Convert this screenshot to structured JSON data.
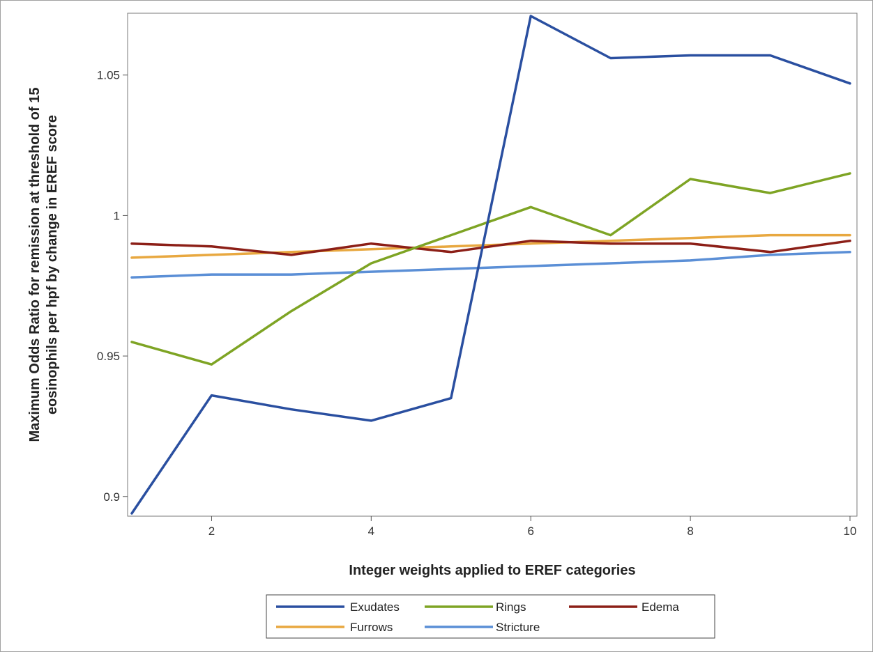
{
  "chart_data": {
    "type": "line",
    "title": "",
    "xlabel": "Integer weights applied to EREF categories",
    "ylabel_lines": [
      "Maximum Odds Ratio for remission at threshold of 15",
      "eosinophils per hpf by change in EREF score"
    ],
    "x": [
      1,
      2,
      3,
      4,
      5,
      6,
      7,
      8,
      9,
      10
    ],
    "xlim": [
      1,
      10
    ],
    "ylim": [
      0.893,
      1.072
    ],
    "xticks": [
      2,
      4,
      6,
      8,
      10
    ],
    "xtick_labels": [
      "2",
      "4",
      "6",
      "8",
      "10"
    ],
    "yticks": [
      0.9,
      0.95,
      1,
      1.05
    ],
    "ytick_labels": [
      "0.9",
      "0.95",
      "1",
      "1.05"
    ],
    "grid": false,
    "legend_position": "bottom",
    "series": [
      {
        "name": "Exudates",
        "color": "#2a4fa0",
        "values": [
          0.894,
          0.936,
          0.931,
          0.927,
          0.935,
          1.071,
          1.056,
          1.057,
          1.057,
          1.047
        ]
      },
      {
        "name": "Rings",
        "color": "#7ea424",
        "values": [
          0.955,
          0.947,
          0.966,
          0.983,
          0.993,
          1.003,
          0.993,
          1.013,
          1.008,
          1.015
        ]
      },
      {
        "name": "Edema",
        "color": "#8c1f17",
        "values": [
          0.99,
          0.989,
          0.986,
          0.99,
          0.987,
          0.991,
          0.99,
          0.99,
          0.987,
          0.991
        ]
      },
      {
        "name": "Furrows",
        "color": "#e8a840",
        "values": [
          0.985,
          0.986,
          0.987,
          0.988,
          0.989,
          0.99,
          0.991,
          0.992,
          0.993,
          0.993
        ]
      },
      {
        "name": "Stricture",
        "color": "#5b8fd6",
        "values": [
          0.978,
          0.979,
          0.979,
          0.98,
          0.981,
          0.982,
          0.983,
          0.984,
          0.986,
          0.987
        ]
      }
    ]
  }
}
